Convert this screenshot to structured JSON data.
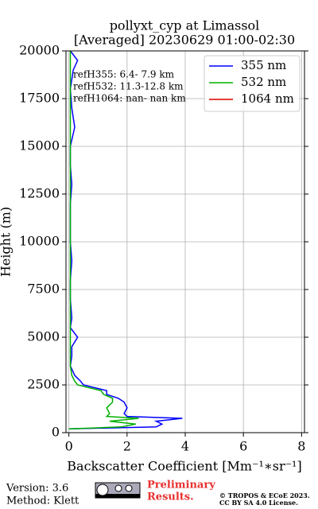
{
  "chart_data": {
    "type": "line",
    "title": "pollyxt_cyp at Limassol",
    "subtitle": "[Averaged] 20230629 01:00-02:30",
    "xlabel": "Backscatter Coefficient [Mm⁻¹∗sr⁻¹]",
    "ylabel": "Height (m)",
    "heights": [
      200,
      300,
      450,
      600,
      750,
      850,
      1000,
      1300,
      1600,
      1800,
      2000,
      2200,
      2500,
      2700,
      3000,
      3500,
      4000,
      4500,
      5000,
      5500,
      6000,
      7000,
      8000,
      9000,
      10000,
      11000,
      12000,
      13000,
      14000,
      15000,
      16000,
      17000,
      18000,
      19000,
      19500,
      20000
    ],
    "series": [
      {
        "name": "355 nm",
        "color": "#0000ff",
        "values": [
          0.0,
          3.0,
          3.2,
          3.0,
          3.9,
          2.0,
          1.9,
          2.0,
          1.9,
          1.7,
          1.3,
          1.3,
          0.5,
          0.4,
          0.2,
          0.05,
          0.1,
          0.1,
          0.3,
          0.05,
          0.1,
          0.05,
          0.05,
          0.1,
          0.05,
          0.05,
          0.05,
          0.1,
          0.05,
          0.05,
          0.2,
          0.1,
          0.05,
          0.15,
          0.3,
          0.05
        ]
      },
      {
        "name": "532 nm",
        "color": "#00b000",
        "values": [
          0.0,
          1.8,
          2.3,
          1.4,
          2.4,
          1.3,
          1.4,
          1.3,
          1.5,
          1.5,
          1.2,
          1.1,
          0.3,
          0.2,
          0.1,
          0.05,
          0.05,
          0.05,
          0.05,
          0.05,
          0.05,
          0.05,
          0.05,
          0.05,
          0.05,
          0.05,
          0.05,
          0.05,
          0.05,
          0.05,
          0.05,
          0.05,
          0.05,
          0.05,
          0.05,
          0.05
        ]
      },
      {
        "name": "1064 nm",
        "color": "#e00000",
        "values": [
          null,
          null,
          null,
          null,
          null,
          null,
          null,
          null,
          null,
          null,
          null,
          null,
          null,
          null,
          null,
          null,
          null,
          null,
          null,
          null,
          null,
          null,
          null,
          null,
          null,
          null,
          null,
          null,
          null,
          null,
          null,
          null,
          null,
          null,
          null,
          null
        ]
      }
    ],
    "xlim": [
      -0.1,
      8.1
    ],
    "xticks": [
      0,
      2,
      4,
      6,
      8
    ],
    "ylim": [
      0,
      20000
    ],
    "yticks": [
      0,
      2500,
      5000,
      7500,
      10000,
      12500,
      15000,
      17500,
      20000
    ],
    "grid": true,
    "legend": "upper right",
    "annotations": [
      "refH355:  6.4- 7.9 km",
      "refH532: 11.3-12.8 km",
      "refH1064:  nan- nan km"
    ]
  },
  "footer": {
    "version": "Version: 3.6",
    "method": "Method: Klett",
    "preliminary": [
      "Preliminary",
      "Results."
    ],
    "copyright": [
      "© TROPOS & ECoE 2023.",
      "CC BY SA 4.0 License."
    ]
  }
}
